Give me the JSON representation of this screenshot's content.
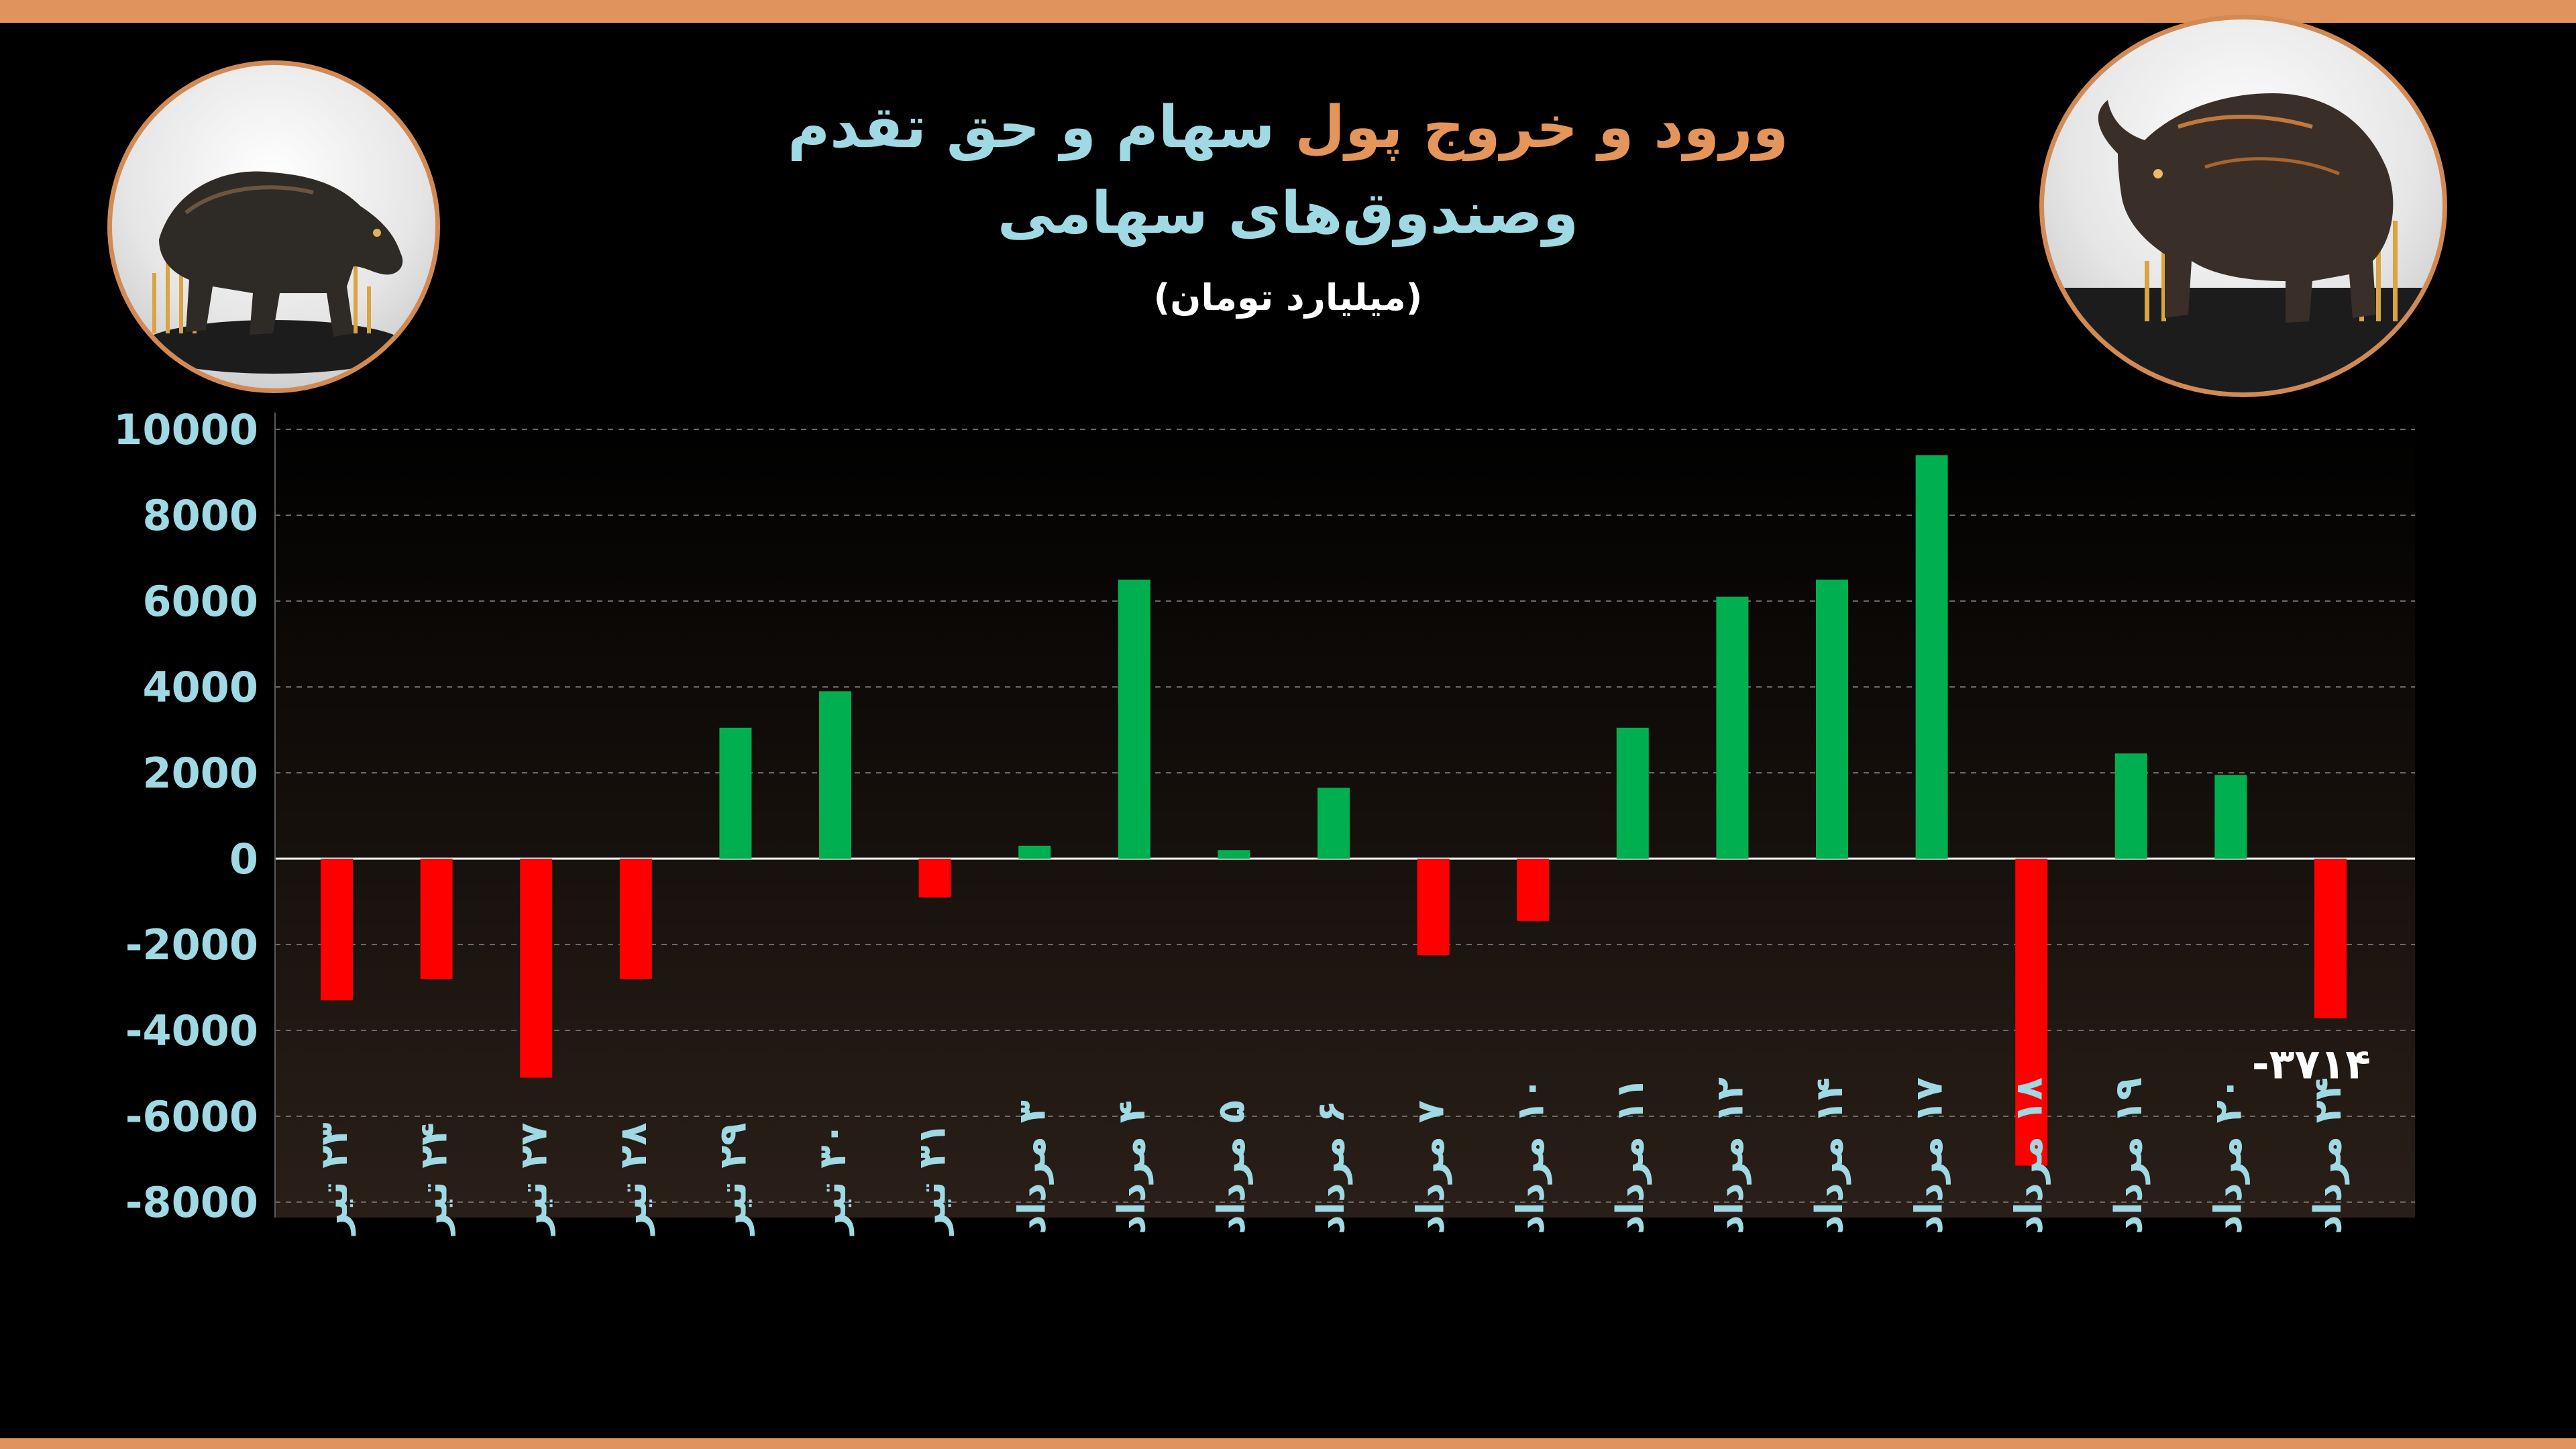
{
  "title": {
    "part1": "ورود و خروج پول",
    "part2": "سهام و حق تقدم",
    "line2": "وصندوق‌های سهامی",
    "unit": "(میلیارد تومان)"
  },
  "icons": {
    "left": "bear-icon",
    "right": "bull-icon"
  },
  "colors": {
    "positive": "#00b050",
    "negative": "#ff0000",
    "axis_labels": "#9fd9e4",
    "title_accent": "#e4955a",
    "frame": "#e0935a"
  },
  "chart_data": {
    "type": "bar",
    "categories": [
      "۲۳ تیر",
      "۲۴ تیر",
      "۲۷ تیر",
      "۲۸ تیر",
      "۲۹ تیر",
      "۳۰ تیر",
      "۳۱ تیر",
      "۳ مرداد",
      "۴ مرداد",
      "۵ مرداد",
      "۶ مرداد",
      "۷ مرداد",
      "۱۰ مرداد",
      "۱۱ مرداد",
      "۱۲ مرداد",
      "۱۴ مرداد",
      "۱۷ مرداد",
      "۱۸ مرداد",
      "۱۹ مرداد",
      "۲۰ مرداد",
      "۲۴ مرداد"
    ],
    "values": [
      -3300,
      -2800,
      -5100,
      -2800,
      3050,
      3900,
      -900,
      300,
      6500,
      200,
      1650,
      -2250,
      -1450,
      3050,
      6100,
      6500,
      9400,
      -7150,
      2450,
      1950,
      -3714
    ],
    "ylim": [
      -8000,
      10000
    ],
    "yticks": [
      10000,
      8000,
      6000,
      4000,
      2000,
      0,
      -2000,
      -4000,
      -6000,
      -8000
    ],
    "ytick_labels": [
      "10000",
      "8000",
      "6000",
      "4000",
      "2000",
      "0",
      "-2000",
      "-4000",
      "-6000",
      "-8000"
    ],
    "annotation": {
      "index": 20,
      "label": "-۳۷۱۴"
    },
    "grid": true,
    "legend": "none"
  }
}
